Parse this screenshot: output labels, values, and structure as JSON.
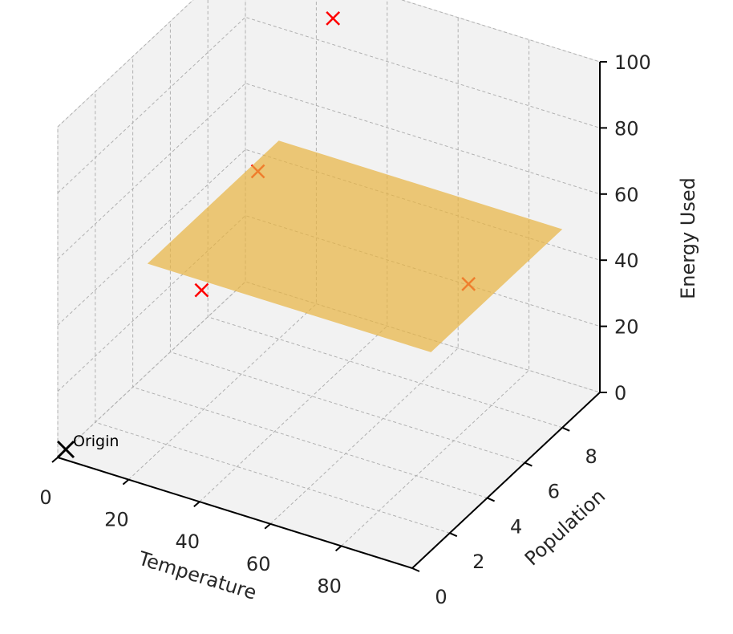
{
  "chart_data": {
    "type": "scatter",
    "title": "",
    "xlabel": "Temperature",
    "ylabel": "Population",
    "zlabel": "Energy Used",
    "x_ticks": [
      "0",
      "20",
      "40",
      "60",
      "80"
    ],
    "y_ticks": [
      "0",
      "2",
      "4",
      "6",
      "8"
    ],
    "z_ticks": [
      "0",
      "20",
      "40",
      "60",
      "80",
      "100"
    ],
    "xlim": [
      0,
      100
    ],
    "ylim": [
      0,
      10
    ],
    "zlim": [
      0,
      100
    ],
    "grid": true,
    "points": [
      {
        "x": 30,
        "y": 9,
        "z": 95
      },
      {
        "x": 30,
        "y": 5,
        "z": 70
      },
      {
        "x": 30,
        "y": 2,
        "z": 50
      },
      {
        "x": 100,
        "y": 3,
        "z": 70
      }
    ],
    "surface": {
      "label": "",
      "corners": [
        {
          "x": 20,
          "y": 1,
          "z": 60
        },
        {
          "x": 100,
          "y": 1,
          "z": 60
        },
        {
          "x": 100,
          "y": 8,
          "z": 60
        },
        {
          "x": 20,
          "y": 8,
          "z": 60
        }
      ]
    },
    "annotation": {
      "text": "Origin",
      "x": 0,
      "y": 0,
      "z": 0
    },
    "colors": {
      "points": "#ff0000",
      "surface": "#e8b440",
      "origin_marker": "#000000",
      "pane": "#f2f2f2",
      "grid": "#b0b0b0"
    }
  }
}
